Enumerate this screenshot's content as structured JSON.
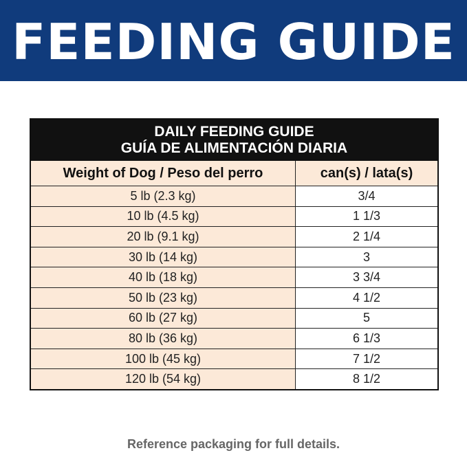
{
  "header": {
    "title": "FEEDING GUIDE"
  },
  "table": {
    "title": [
      "DAILY FEEDING GUIDE",
      "GUÍA DE ALIMENTACIÓN DIARIA"
    ],
    "columns": [
      "Weight of Dog / Peso del perro",
      "can(s) / lata(s)"
    ],
    "rows": [
      [
        "5 lb (2.3 kg)",
        "3/4"
      ],
      [
        "10 lb (4.5 kg)",
        "1 1/3"
      ],
      [
        "20 lb (9.1 kg)",
        "2 1/4"
      ],
      [
        "30 lb (14 kg)",
        "3"
      ],
      [
        "40 lb (18 kg)",
        "3 3/4"
      ],
      [
        "50 lb (23 kg)",
        "4 1/2"
      ],
      [
        "60 lb (27 kg)",
        "5"
      ],
      [
        "80 lb (36 kg)",
        "6 1/3"
      ],
      [
        "100 lb (45 kg)",
        "7 1/2"
      ],
      [
        "120 lb (54 kg)",
        "8 1/2"
      ]
    ]
  },
  "footer": {
    "note": "Reference packaging for full details."
  }
}
